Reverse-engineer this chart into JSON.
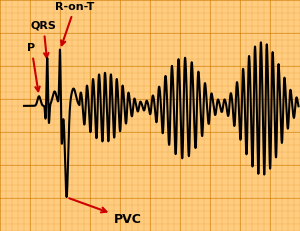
{
  "bg_color": "#FFCC80",
  "ecg_color": "#000000",
  "line_width": 1.5,
  "annotation_color": "#CC0000",
  "ann_fontsize": 8,
  "figsize": [
    3.0,
    2.31
  ],
  "dpi": 100,
  "xlim": [
    0.0,
    10.0
  ],
  "ylim": [
    -1.3,
    1.1
  ],
  "minor_grid_color": "#E8970030",
  "major_grid_color": "#D07800",
  "minor_grid_lw": 0.3,
  "major_grid_lw": 0.7
}
